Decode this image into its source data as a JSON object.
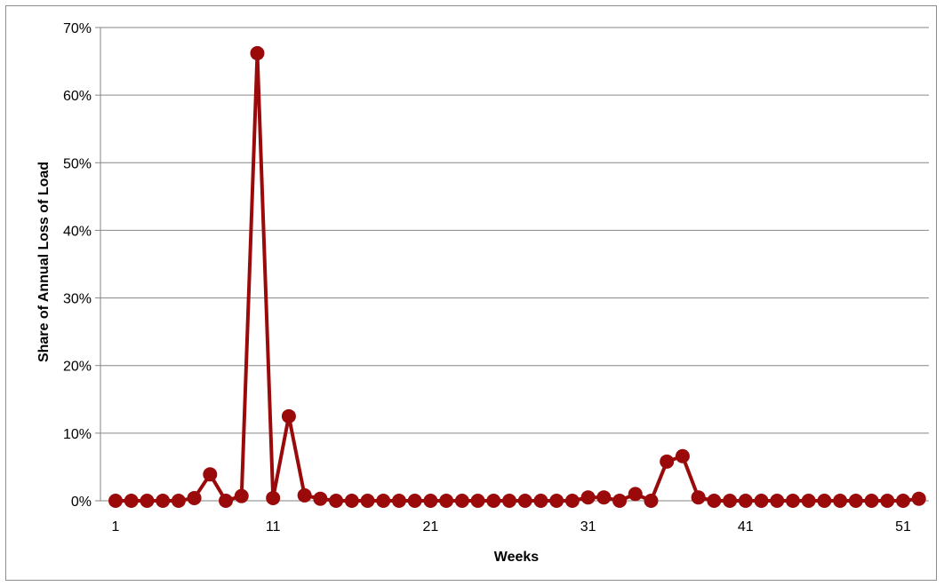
{
  "chart_data": {
    "type": "line",
    "title": "",
    "xlabel": "Weeks",
    "ylabel": "Share of Annual Loss of Load",
    "x": [
      1,
      2,
      3,
      4,
      5,
      6,
      7,
      8,
      9,
      10,
      11,
      12,
      13,
      14,
      15,
      16,
      17,
      18,
      19,
      20,
      21,
      22,
      23,
      24,
      25,
      26,
      27,
      28,
      29,
      30,
      31,
      32,
      33,
      34,
      35,
      36,
      37,
      38,
      39,
      40,
      41,
      42,
      43,
      44,
      45,
      46,
      47,
      48,
      49,
      50,
      51,
      52
    ],
    "series": [
      {
        "values": [
          0,
          0,
          0,
          0,
          0,
          0.4,
          3.9,
          0,
          0.7,
          66.2,
          0.4,
          12.5,
          0.8,
          0.3,
          0,
          0,
          0,
          0,
          0,
          0,
          0,
          0,
          0,
          0,
          0,
          0,
          0,
          0,
          0,
          0,
          0.5,
          0.5,
          0,
          1.0,
          0,
          5.8,
          6.6,
          0.5,
          0,
          0,
          0,
          0,
          0,
          0,
          0,
          0,
          0,
          0,
          0,
          0,
          0,
          0.3
        ],
        "color": "#9b0a0a"
      }
    ],
    "ylim": [
      0,
      70
    ],
    "yticks": [
      "0%",
      "10%",
      "20%",
      "30%",
      "40%",
      "50%",
      "60%",
      "70%"
    ],
    "xticks": [
      "1",
      "11",
      "21",
      "31",
      "41",
      "51"
    ],
    "grid": "horizontal",
    "legend": "none",
    "axis_color": "#868686",
    "grid_color": "#868686"
  }
}
